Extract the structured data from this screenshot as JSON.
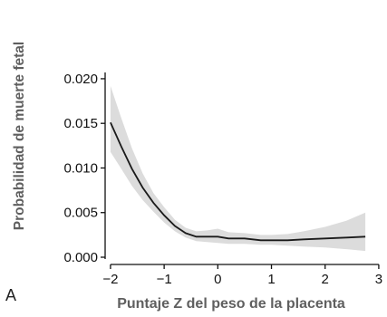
{
  "chart_data": {
    "type": "line",
    "panel_label": "A",
    "xlabel": "Puntaje Z del peso de la placenta",
    "ylabel": "Probabilidad de muerte fetal",
    "xlim": [
      -2.1,
      2.9
    ],
    "ylim": [
      0.0,
      0.0205
    ],
    "xticks": [
      "−2",
      "−1",
      "0",
      "1",
      "2",
      "3"
    ],
    "xtick_values": [
      -2,
      -1,
      0,
      1,
      2,
      3
    ],
    "yticks": [
      "0.000",
      "0.005",
      "0.010",
      "0.015",
      "0.020"
    ],
    "ytick_values": [
      0.0,
      0.005,
      0.01,
      0.015,
      0.02
    ],
    "grid": false,
    "series": [
      {
        "color": "#1a1a1a",
        "band_color": "#dcdcdc",
        "x": [
          -2.0,
          -1.8,
          -1.6,
          -1.4,
          -1.2,
          -1.0,
          -0.8,
          -0.6,
          -0.4,
          -0.2,
          0.0,
          0.2,
          0.5,
          0.8,
          1.0,
          1.3,
          1.6,
          2.0,
          2.4,
          2.75
        ],
        "y": [
          0.0151,
          0.0124,
          0.0099,
          0.0078,
          0.0061,
          0.0047,
          0.0035,
          0.0027,
          0.0023,
          0.0023,
          0.0023,
          0.0021,
          0.0021,
          0.0019,
          0.0019,
          0.0019,
          0.002,
          0.0021,
          0.0022,
          0.0023
        ],
        "lower": [
          0.0118,
          0.0099,
          0.008,
          0.0064,
          0.0051,
          0.0039,
          0.0029,
          0.0022,
          0.0018,
          0.0017,
          0.0016,
          0.0015,
          0.0015,
          0.0014,
          0.0014,
          0.0013,
          0.0012,
          0.0011,
          0.0009,
          0.0007
        ],
        "upper": [
          0.0192,
          0.0156,
          0.0122,
          0.0094,
          0.0072,
          0.0056,
          0.0042,
          0.0033,
          0.0029,
          0.003,
          0.0032,
          0.0028,
          0.0027,
          0.0025,
          0.0025,
          0.0026,
          0.0029,
          0.0034,
          0.0041,
          0.005
        ]
      }
    ]
  }
}
